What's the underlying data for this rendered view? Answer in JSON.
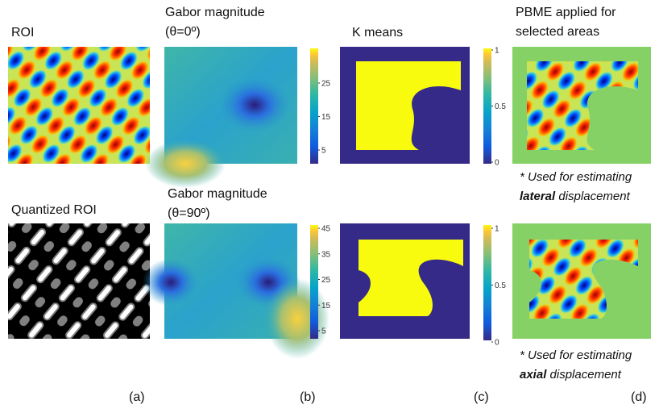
{
  "panels": {
    "a": {
      "label": "(a)",
      "top_title": "ROI",
      "bottom_title": "Quantized ROI"
    },
    "b": {
      "label": "(b)",
      "top_title": [
        "Gabor magnitude",
        "(θ=0º)"
      ],
      "top_colorbar_ticks": [
        25,
        15,
        5
      ],
      "bottom_title": [
        "Gabor magnitude",
        "(θ=90º)"
      ],
      "bottom_colorbar_ticks": [
        45,
        35,
        25,
        15,
        5
      ]
    },
    "c": {
      "label": "(c)",
      "top_title": "K means",
      "top_colorbar_ticks": [
        1,
        0.5,
        0
      ],
      "bottom_colorbar_ticks": [
        1,
        0.5,
        0
      ]
    },
    "d": {
      "label": "(d)",
      "top_title": [
        "PBME applied for",
        "selected areas"
      ],
      "top_note": {
        "line1": "* Used for estimating",
        "emphasis": "lateral",
        "rest": " displacement"
      },
      "bottom_note": {
        "line1": "* Used for estimating",
        "emphasis": "axial",
        "rest": " displacement"
      }
    }
  }
}
